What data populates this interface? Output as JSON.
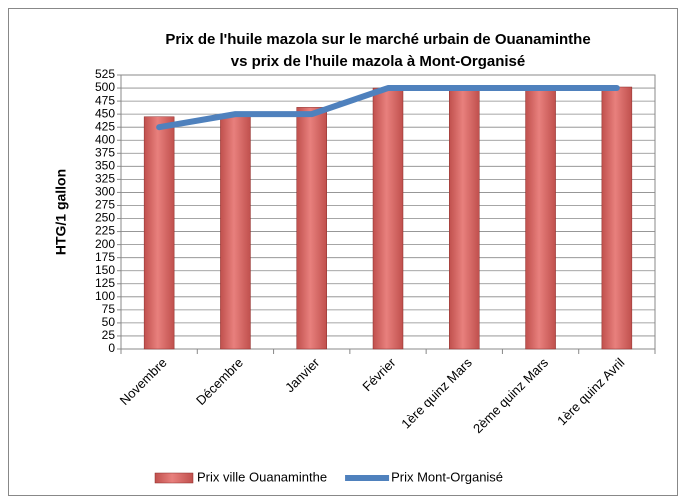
{
  "chart_data": {
    "type": "bar",
    "title": [
      "Prix de l'huile mazola sur le marché urbain de Ouanaminthe",
      "vs prix de l'huile mazola à Mont-Organisé"
    ],
    "y_label": "HTG/1 gallon",
    "categories": [
      "Novembre",
      "Décembre",
      "Janvier",
      "Février",
      "1ère quinz Mars",
      "2ème quinz Mars",
      "1ère quinz Avril"
    ],
    "series": [
      {
        "name": "Prix ville Ouanaminthe",
        "type": "bar",
        "color": "#c0504d",
        "values": [
          445,
          450,
          463,
          500,
          500,
          500,
          502
        ]
      },
      {
        "name": "Prix Mont-Organisé",
        "type": "line",
        "color": "#4f81bd",
        "values": [
          425,
          450,
          450,
          500,
          500,
          500,
          500
        ]
      }
    ],
    "ylim": [
      0,
      525
    ],
    "yticks": [
      0,
      25,
      50,
      75,
      100,
      125,
      150,
      175,
      200,
      225,
      250,
      275,
      300,
      325,
      350,
      375,
      400,
      425,
      450,
      475,
      500,
      525
    ],
    "grid": true,
    "legend": "bottom"
  }
}
